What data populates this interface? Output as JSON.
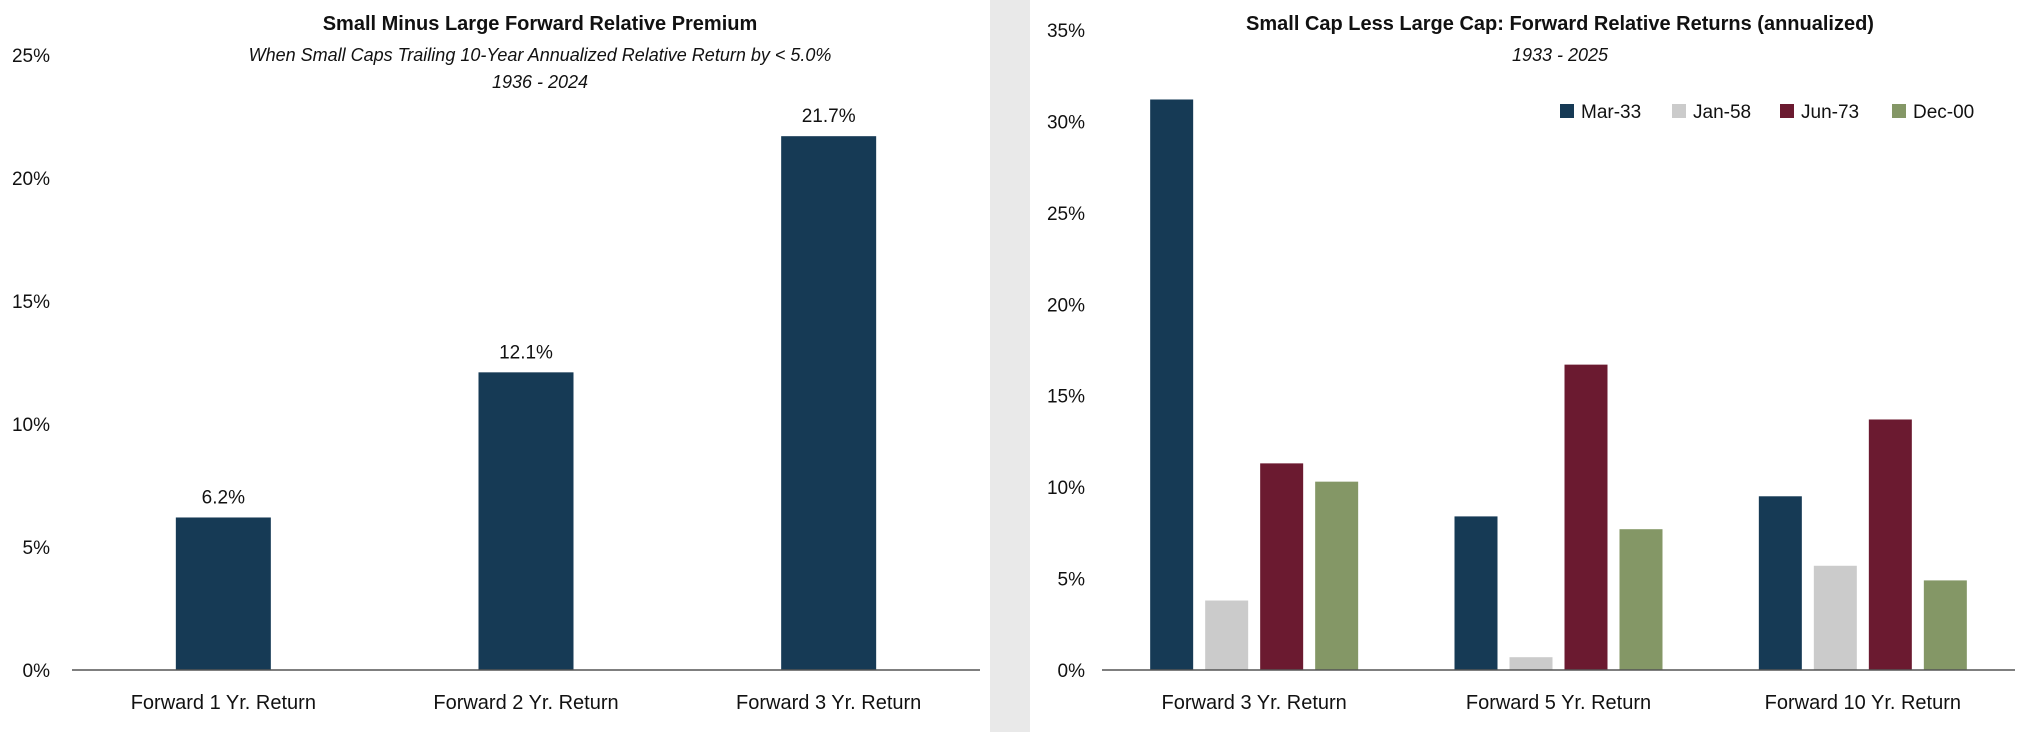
{
  "colors": {
    "navy": "#163a55",
    "gray": "#cbcbcb",
    "maroon": "#6b1a30",
    "green": "#849766",
    "axis": "#555555",
    "divider": "#e9e9e9"
  },
  "chart_data": [
    {
      "type": "bar",
      "title": "Small Minus Large Forward Relative Premium",
      "subtitle_lines": [
        "When Small Caps Trailing 10-Year Annualized Relative Return by < 5.0%",
        "1936 - 2024"
      ],
      "categories": [
        "Forward 1 Yr. Return",
        "Forward 2 Yr. Return",
        "Forward 3 Yr. Return"
      ],
      "values": [
        6.2,
        12.1,
        21.7
      ],
      "data_labels": [
        "6.2%",
        "12.1%",
        "21.7%"
      ],
      "ylim": [
        0,
        25
      ],
      "yticks": [
        "0%",
        "5%",
        "10%",
        "15%",
        "20%",
        "25%"
      ],
      "grid": false
    },
    {
      "type": "bar",
      "title": "Small Cap Less Large Cap: Forward Relative Returns (annualized)",
      "subtitle_lines": [
        "1933 - 2025"
      ],
      "categories": [
        "Forward 3 Yr. Return",
        "Forward 5 Yr. Return",
        "Forward 10 Yr. Return"
      ],
      "series": [
        {
          "name": "Mar-33",
          "color": "#163a55",
          "values": [
            31.2,
            8.4,
            9.5
          ]
        },
        {
          "name": "Jan-58",
          "color": "#cbcbcb",
          "values": [
            3.8,
            0.7,
            5.7
          ]
        },
        {
          "name": "Jun-73",
          "color": "#6b1a30",
          "values": [
            11.3,
            16.7,
            13.7
          ]
        },
        {
          "name": "Dec-00",
          "color": "#849766",
          "values": [
            10.3,
            7.7,
            4.9
          ]
        }
      ],
      "ylim": [
        0,
        35
      ],
      "yticks": [
        "0%",
        "5%",
        "10%",
        "15%",
        "20%",
        "25%",
        "30%",
        "35%"
      ],
      "legend_position": "top-right",
      "grid": false
    }
  ]
}
